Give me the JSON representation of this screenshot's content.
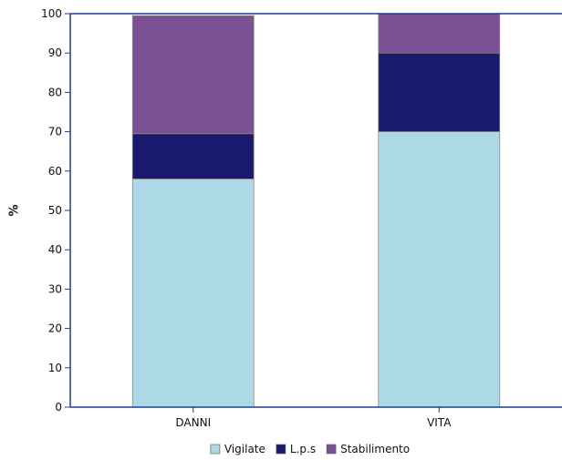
{
  "chart_data": {
    "type": "bar",
    "stacked": true,
    "categories": [
      "DANNI",
      "VITA"
    ],
    "series": [
      {
        "name": "Vigilate",
        "values": [
          58,
          70
        ],
        "color": "#add8e6"
      },
      {
        "name": "L.p.s",
        "values": [
          11.5,
          20
        ],
        "color": "#191970"
      },
      {
        "name": "Stabilimento",
        "values": [
          30,
          10
        ],
        "color": "#7b5095"
      }
    ],
    "title": "",
    "xlabel": "",
    "ylabel": "%",
    "ylim": [
      0,
      100
    ],
    "yticks": [
      0,
      10,
      20,
      30,
      40,
      50,
      60,
      70,
      80,
      90,
      100
    ],
    "grid": false,
    "legend_position": "bottom-center",
    "axis_color": "#1f3f8f"
  }
}
